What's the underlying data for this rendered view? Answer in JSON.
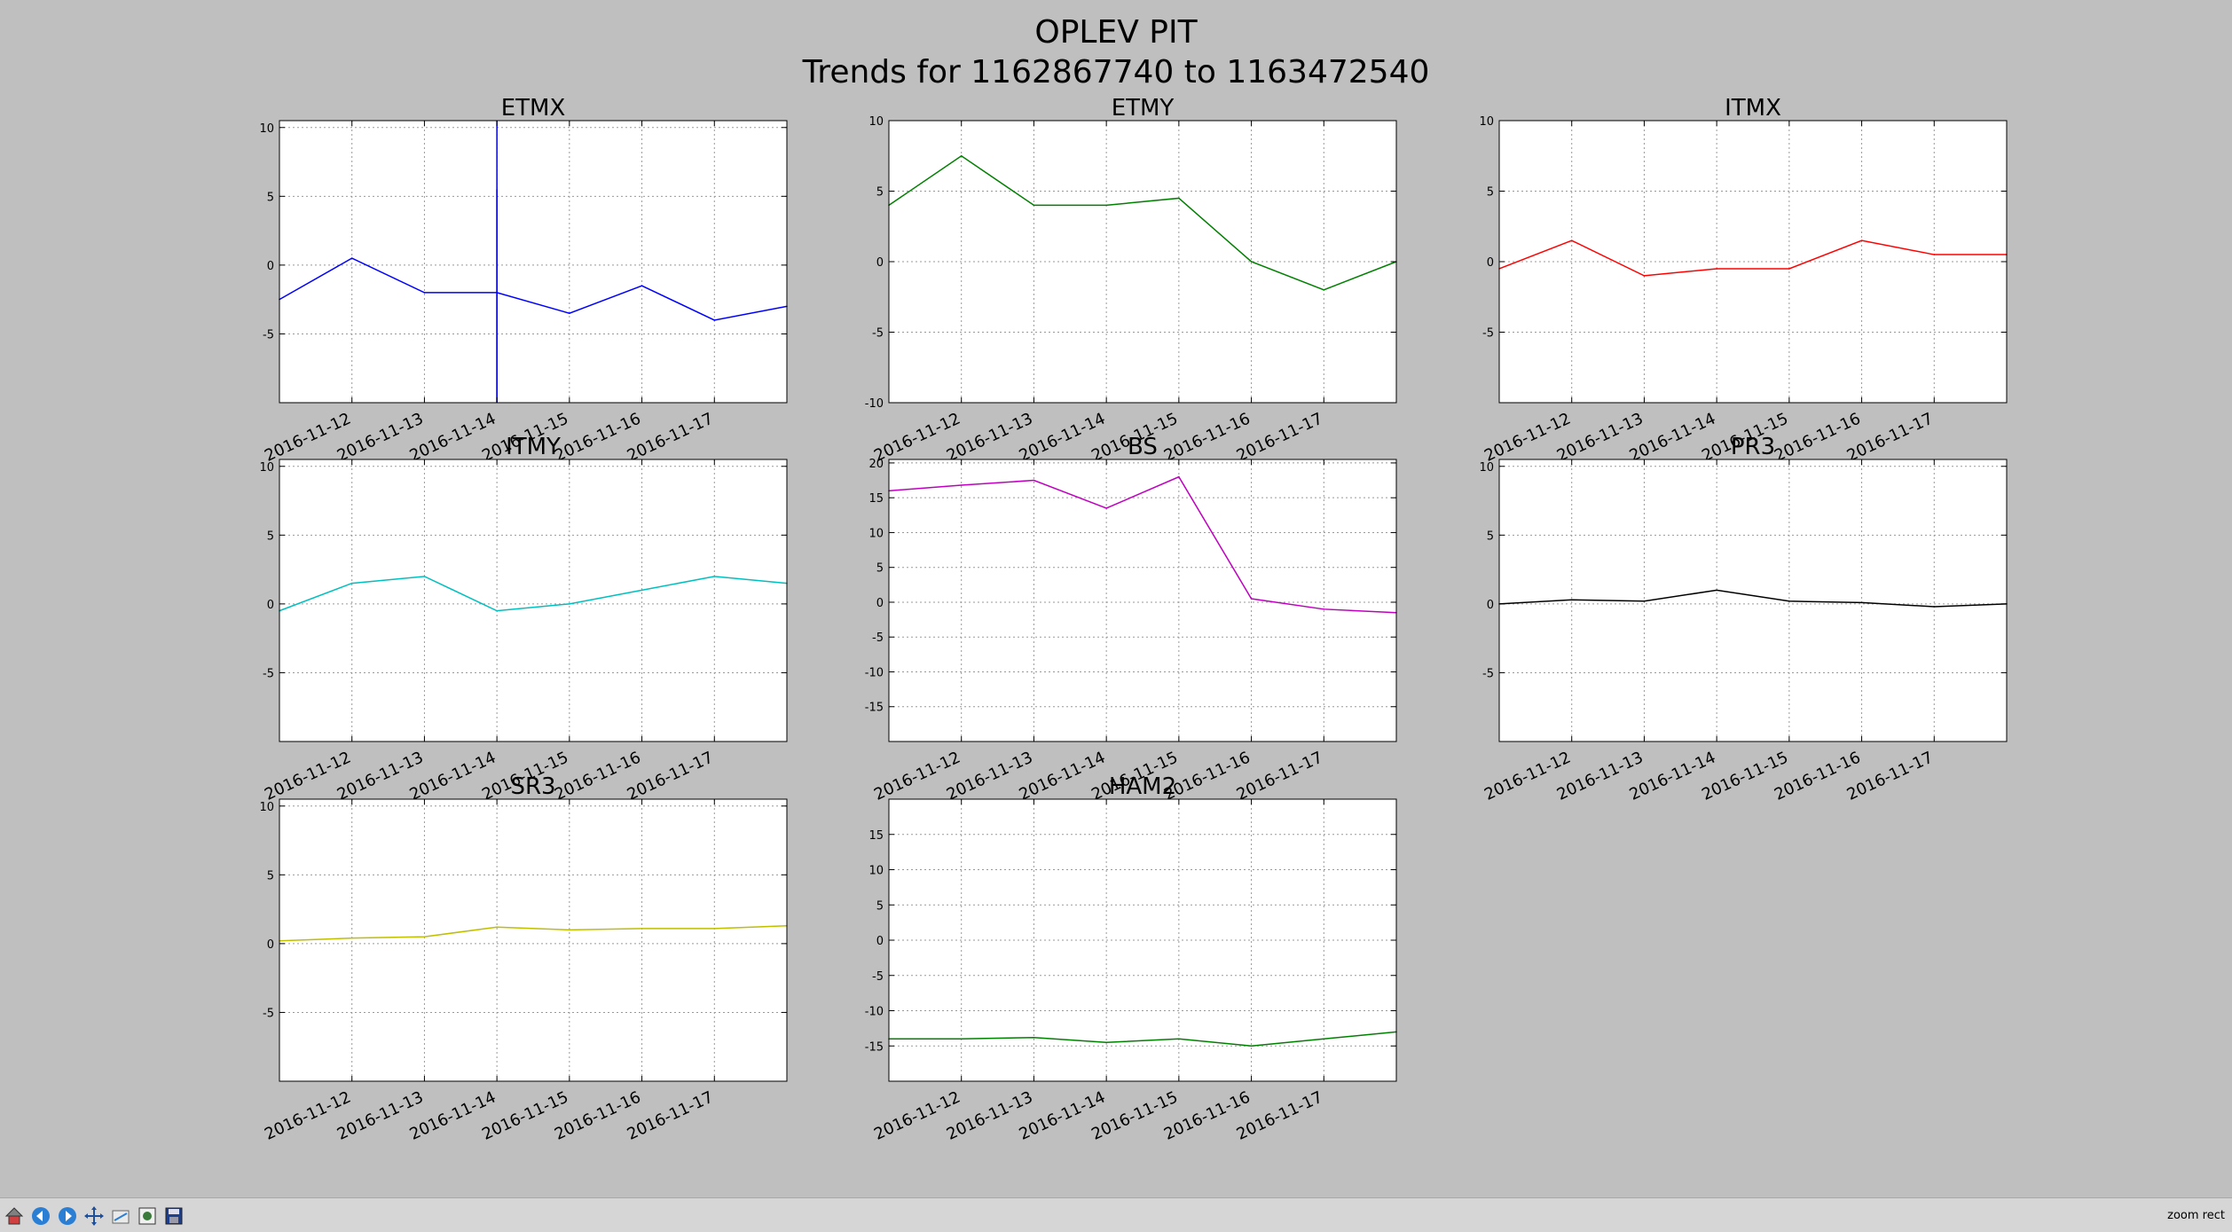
{
  "figure": {
    "title_line1": "OPLEV PIT",
    "title_line2": "Trends for 1162867740 to 1163472540"
  },
  "x_tick_labels": [
    "2016-11-12",
    "2016-11-13",
    "2016-11-14",
    "2016-11-15",
    "2016-11-16",
    "2016-11-17"
  ],
  "chart_data": [
    {
      "type": "line",
      "title": "ETMX",
      "color": "#0000ff",
      "ylim": [
        -10,
        10.5
      ],
      "yticks": [
        10,
        5,
        0,
        -5
      ],
      "ytick_labels": [
        "10",
        "5",
        "0",
        "-5"
      ],
      "grid": true,
      "x": [
        "2016-11-11",
        "2016-11-12",
        "2016-11-13",
        "2016-11-14",
        "2016-11-15",
        "2016-11-16",
        "2016-11-17",
        "2016-11-18"
      ],
      "series": [
        {
          "values": [
            -2.5,
            0.5,
            -2,
            -2,
            -3.5,
            -1.5,
            -4,
            -3
          ]
        }
      ],
      "spikes": [
        {
          "x": "2016-11-14",
          "y_low": -10,
          "y_high": 5.5
        },
        {
          "x": "2016-11-14",
          "y_low": -10,
          "y_high": 10.5
        }
      ]
    },
    {
      "type": "line",
      "title": "ETMY",
      "color": "#008000",
      "ylim": [
        -10,
        10
      ],
      "yticks": [
        10,
        5,
        0,
        -5,
        -10
      ],
      "ytick_labels": [
        "10",
        "5",
        "0",
        "-5",
        "-10"
      ],
      "grid": true,
      "x": [
        "2016-11-11",
        "2016-11-12",
        "2016-11-13",
        "2016-11-14",
        "2016-11-15",
        "2016-11-16",
        "2016-11-17",
        "2016-11-18"
      ],
      "series": [
        {
          "values": [
            4,
            7.5,
            4,
            4,
            4.5,
            0,
            -2,
            0
          ]
        }
      ]
    },
    {
      "type": "line",
      "title": "ITMX",
      "color": "#ff0000",
      "ylim": [
        -10,
        10
      ],
      "yticks": [
        10,
        5,
        0,
        -5
      ],
      "ytick_labels": [
        "10",
        "5",
        "0",
        "-5"
      ],
      "grid": true,
      "x": [
        "2016-11-11",
        "2016-11-12",
        "2016-11-13",
        "2016-11-14",
        "2016-11-15",
        "2016-11-16",
        "2016-11-17",
        "2016-11-18"
      ],
      "series": [
        {
          "values": [
            -0.5,
            1.5,
            -1,
            -0.5,
            -0.5,
            1.5,
            0.5,
            0.5
          ]
        }
      ]
    },
    {
      "type": "line",
      "title": "ITMY",
      "color": "#00bfbf",
      "ylim": [
        -10,
        10.5
      ],
      "yticks": [
        10,
        5,
        0,
        -5
      ],
      "ytick_labels": [
        "10",
        "5",
        "0",
        "-5"
      ],
      "grid": true,
      "x": [
        "2016-11-11",
        "2016-11-12",
        "2016-11-13",
        "2016-11-14",
        "2016-11-15",
        "2016-11-16",
        "2016-11-17",
        "2016-11-18"
      ],
      "series": [
        {
          "values": [
            -0.5,
            1.5,
            2,
            -0.5,
            0,
            1,
            2,
            1.5
          ]
        }
      ]
    },
    {
      "type": "line",
      "title": "BS",
      "color": "#bf00bf",
      "ylim": [
        -20,
        20.5
      ],
      "yticks": [
        20,
        15,
        10,
        5,
        0,
        -5,
        -10,
        -15
      ],
      "ytick_labels": [
        "20",
        "15",
        "10",
        "5",
        "0",
        "-5",
        "-10",
        "-15"
      ],
      "grid": true,
      "x": [
        "2016-11-11",
        "2016-11-12",
        "2016-11-13",
        "2016-11-14",
        "2016-11-15",
        "2016-11-16",
        "2016-11-17",
        "2016-11-18"
      ],
      "series": [
        {
          "values": [
            16,
            16.8,
            17.5,
            13.5,
            18,
            0.5,
            -1,
            -1.5
          ]
        }
      ]
    },
    {
      "type": "line",
      "title": "PR3",
      "color": "#000000",
      "ylim": [
        -10,
        10.5
      ],
      "yticks": [
        10,
        5,
        0,
        -5
      ],
      "ytick_labels": [
        "10",
        "5",
        "0",
        "-5"
      ],
      "grid": true,
      "x": [
        "2016-11-11",
        "2016-11-12",
        "2016-11-13",
        "2016-11-14",
        "2016-11-15",
        "2016-11-16",
        "2016-11-17",
        "2016-11-18"
      ],
      "series": [
        {
          "values": [
            0,
            0.3,
            0.2,
            1,
            0.2,
            0.1,
            -0.2,
            0
          ]
        }
      ]
    },
    {
      "type": "line",
      "title": "SR3",
      "color": "#bfbf00",
      "ylim": [
        -10,
        10.5
      ],
      "yticks": [
        10,
        5,
        0,
        -5
      ],
      "ytick_labels": [
        "10",
        "5",
        "0",
        "-5"
      ],
      "grid": true,
      "x": [
        "2016-11-11",
        "2016-11-12",
        "2016-11-13",
        "2016-11-14",
        "2016-11-15",
        "2016-11-16",
        "2016-11-17",
        "2016-11-18"
      ],
      "series": [
        {
          "values": [
            0.2,
            0.4,
            0.5,
            1.2,
            1,
            1.1,
            1.1,
            1.3
          ]
        }
      ]
    },
    {
      "type": "line",
      "title": "HAM2",
      "color": "#008000",
      "ylim": [
        -20,
        20
      ],
      "yticks": [
        15,
        10,
        5,
        0,
        -5,
        -10,
        -15
      ],
      "ytick_labels": [
        "15",
        "10",
        "5",
        "0",
        "-5",
        "-10",
        "-15"
      ],
      "grid": true,
      "x": [
        "2016-11-11",
        "2016-11-12",
        "2016-11-13",
        "2016-11-14",
        "2016-11-15",
        "2016-11-16",
        "2016-11-17",
        "2016-11-18"
      ],
      "series": [
        {
          "values": [
            -14,
            -14,
            -13.8,
            -14.5,
            -14,
            -15,
            -14,
            -13
          ]
        }
      ]
    }
  ],
  "toolbar": {
    "buttons": [
      "home-icon",
      "back-icon",
      "forward-icon",
      "pan-icon",
      "zoom-icon",
      "subplots-icon",
      "save-icon"
    ],
    "status": "zoom rect"
  }
}
